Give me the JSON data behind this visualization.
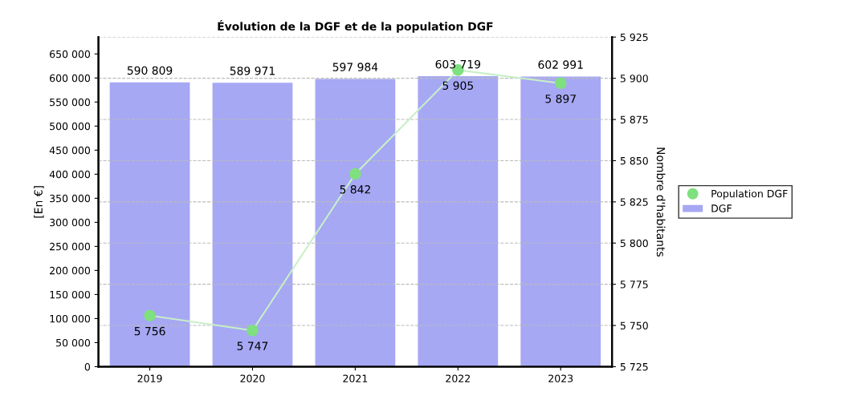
{
  "chart_data": {
    "type": "bar",
    "title": "Évolution de la DGF et de la population DGF",
    "ylabel": "[En €]",
    "y2label": "Nombre d'habitants",
    "categories": [
      "2019",
      "2020",
      "2021",
      "2022",
      "2023"
    ],
    "series": [
      {
        "name": "DGF",
        "color": "#a6a8f4",
        "values": [
          590809,
          589971,
          597984,
          603719,
          602991
        ],
        "value_labels": [
          "590 809",
          "589 971",
          "597 984",
          "603 719",
          "602 991"
        ]
      },
      {
        "name": "Population DGF",
        "type": "line",
        "axis": "y2",
        "color": "#7fe07f",
        "marker": "circle",
        "values": [
          5756,
          5747,
          5842,
          5905,
          5897
        ],
        "value_labels": [
          "5 756",
          "5 747",
          "5 842",
          "5 905",
          "5 897"
        ]
      }
    ],
    "ylim": [
      0,
      685000
    ],
    "yticks": [
      {
        "value": 0,
        "label": "0"
      },
      {
        "value": 50000,
        "label": "50 000"
      },
      {
        "value": 100000,
        "label": "100 000"
      },
      {
        "value": 150000,
        "label": "150 000"
      },
      {
        "value": 200000,
        "label": "200 000"
      },
      {
        "value": 250000,
        "label": "250 000"
      },
      {
        "value": 300000,
        "label": "300 000"
      },
      {
        "value": 350000,
        "label": "350 000"
      },
      {
        "value": 400000,
        "label": "400 000"
      },
      {
        "value": 450000,
        "label": "450 000"
      },
      {
        "value": 500000,
        "label": "500 000"
      },
      {
        "value": 550000,
        "label": "550 000"
      },
      {
        "value": 600000,
        "label": "600 000"
      },
      {
        "value": 650000,
        "label": "650 000"
      }
    ],
    "y2lim": [
      5725,
      5925
    ],
    "y2ticks": [
      {
        "value": 5725,
        "label": "5 725"
      },
      {
        "value": 5750,
        "label": "5 750"
      },
      {
        "value": 5775,
        "label": "5 775"
      },
      {
        "value": 5800,
        "label": "5 800"
      },
      {
        "value": 5825,
        "label": "5 825"
      },
      {
        "value": 5850,
        "label": "5 850"
      },
      {
        "value": 5875,
        "label": "5 875"
      },
      {
        "value": 5900,
        "label": "5 900"
      },
      {
        "value": 5925,
        "label": "5 925"
      }
    ],
    "grid": "y2",
    "legend": "right"
  }
}
